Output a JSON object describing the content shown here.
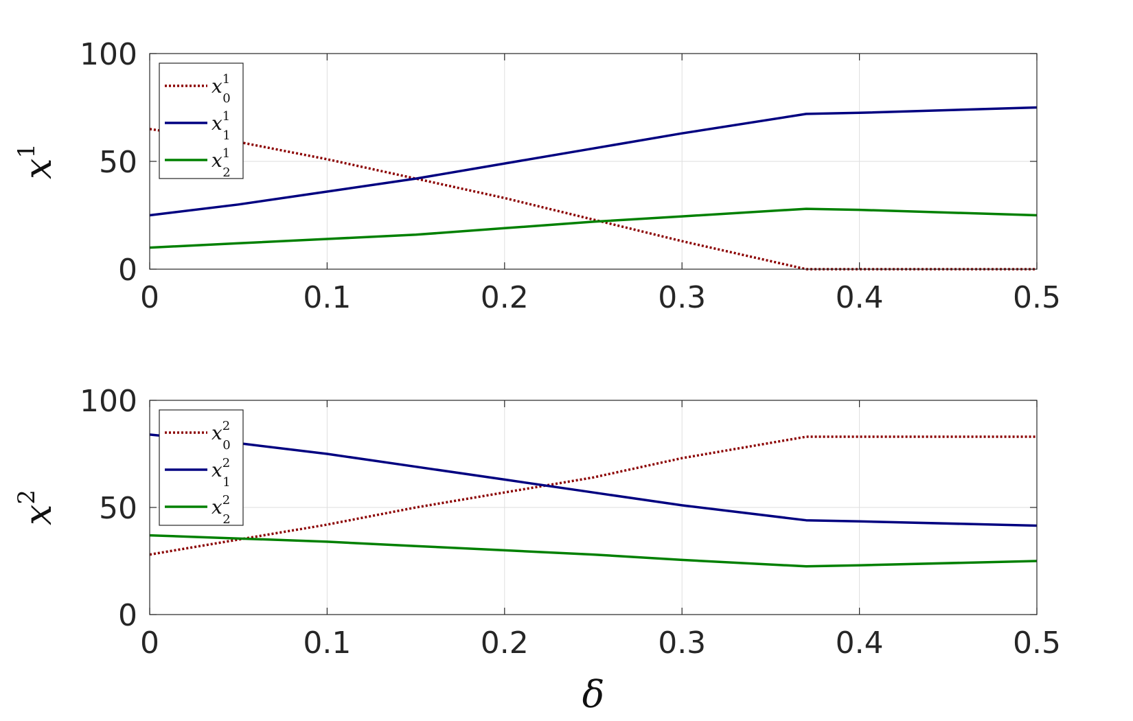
{
  "chart_data": [
    {
      "type": "line",
      "ylabel": "x",
      "ylabel_sup": "1",
      "xlabel": "",
      "xlim": [
        0,
        0.5
      ],
      "ylim": [
        0,
        100
      ],
      "xticks": [
        "0",
        "0.1",
        "0.2",
        "0.3",
        "0.4",
        "0.5"
      ],
      "yticks": [
        "0",
        "50",
        "100"
      ],
      "grid": true,
      "legend_position": "top-left",
      "series": [
        {
          "name": "x",
          "sup": "1",
          "sub": "0",
          "color": "#8b0000",
          "style": "dotted",
          "x": [
            0,
            0.05,
            0.1,
            0.15,
            0.2,
            0.25,
            0.3,
            0.37,
            0.4,
            0.5
          ],
          "y": [
            65,
            59,
            51,
            42,
            33,
            23,
            13,
            0,
            0,
            0
          ]
        },
        {
          "name": "x",
          "sup": "1",
          "sub": "1",
          "color": "#000080",
          "style": "solid",
          "x": [
            0,
            0.05,
            0.1,
            0.15,
            0.2,
            0.25,
            0.3,
            0.37,
            0.4,
            0.5
          ],
          "y": [
            25,
            30,
            36,
            42,
            49,
            56,
            63,
            72,
            72.5,
            75
          ]
        },
        {
          "name": "x",
          "sup": "1",
          "sub": "2",
          "color": "#008000",
          "style": "solid",
          "x": [
            0,
            0.05,
            0.1,
            0.15,
            0.2,
            0.25,
            0.3,
            0.37,
            0.4,
            0.5
          ],
          "y": [
            10,
            12,
            14,
            16,
            19,
            22,
            24.5,
            28,
            27.5,
            25
          ]
        }
      ]
    },
    {
      "type": "line",
      "ylabel": "x",
      "ylabel_sup": "2",
      "xlabel": "δ",
      "xlim": [
        0,
        0.5
      ],
      "ylim": [
        0,
        100
      ],
      "xticks": [
        "0",
        "0.1",
        "0.2",
        "0.3",
        "0.4",
        "0.5"
      ],
      "yticks": [
        "0",
        "50",
        "100"
      ],
      "grid": true,
      "legend_position": "top-left",
      "series": [
        {
          "name": "x",
          "sup": "2",
          "sub": "0",
          "color": "#8b0000",
          "style": "dotted",
          "x": [
            0,
            0.05,
            0.1,
            0.15,
            0.2,
            0.25,
            0.3,
            0.37,
            0.4,
            0.5
          ],
          "y": [
            28,
            35,
            42,
            50,
            57,
            64,
            73,
            83,
            83,
            83
          ]
        },
        {
          "name": "x",
          "sup": "2",
          "sub": "1",
          "color": "#000080",
          "style": "solid",
          "x": [
            0,
            0.05,
            0.1,
            0.15,
            0.2,
            0.25,
            0.3,
            0.37,
            0.4,
            0.5
          ],
          "y": [
            84,
            80,
            75,
            69,
            63,
            57,
            51,
            44,
            43.5,
            41.5
          ]
        },
        {
          "name": "x",
          "sup": "2",
          "sub": "2",
          "color": "#008000",
          "style": "solid",
          "x": [
            0,
            0.05,
            0.1,
            0.15,
            0.2,
            0.25,
            0.3,
            0.37,
            0.4,
            0.5
          ],
          "y": [
            37,
            35.5,
            34,
            32,
            30,
            28,
            25.5,
            22.5,
            23,
            25
          ]
        }
      ]
    }
  ]
}
